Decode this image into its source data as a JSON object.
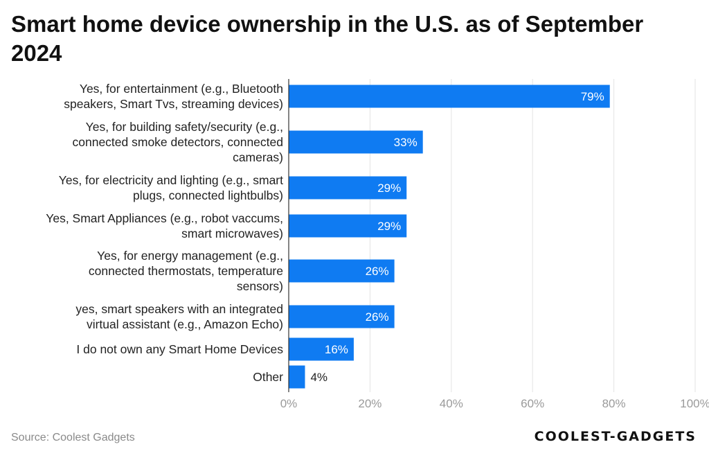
{
  "chart_data": {
    "type": "bar",
    "orientation": "horizontal",
    "title": "Smart home device ownership in the U.S. as of September 2024",
    "categories": [
      [
        "Yes, for entertainment (e.g., Bluetooth",
        "speakers, Smart Tvs, streaming devices)"
      ],
      [
        "Yes, for building safety/security (e.g.,",
        "connected smoke detectors, connected",
        "cameras)"
      ],
      [
        "Yes, for electricity and lighting (e.g., smart",
        "plugs, connected lightbulbs)"
      ],
      [
        "Yes, Smart Appliances (e.g., robot vaccums,",
        "smart microwaves)"
      ],
      [
        "Yes, for energy management (e.g.,",
        "connected thermostats, temperature",
        "sensors)"
      ],
      [
        "yes, smart speakers with an integrated",
        "virtual assistant (e.g., Amazon Echo)"
      ],
      [
        "I do not own any Smart Home Devices"
      ],
      [
        "Other"
      ]
    ],
    "values": [
      79,
      33,
      29,
      29,
      26,
      26,
      16,
      4
    ],
    "data_labels": [
      "79%",
      "33%",
      "29%",
      "29%",
      "26%",
      "26%",
      "16%",
      "4%"
    ],
    "xlim": [
      0,
      100
    ],
    "x_ticks": [
      0,
      20,
      40,
      60,
      80,
      100
    ],
    "x_tick_labels": [
      "0%",
      "20%",
      "40%",
      "60%",
      "80%",
      "100%"
    ],
    "grid": true,
    "bar_color": "#0f7bf2",
    "xlabel": "",
    "ylabel": ""
  },
  "footer": {
    "source": "Source: Coolest Gadgets",
    "logo": "COOLEST-GADGETS"
  }
}
